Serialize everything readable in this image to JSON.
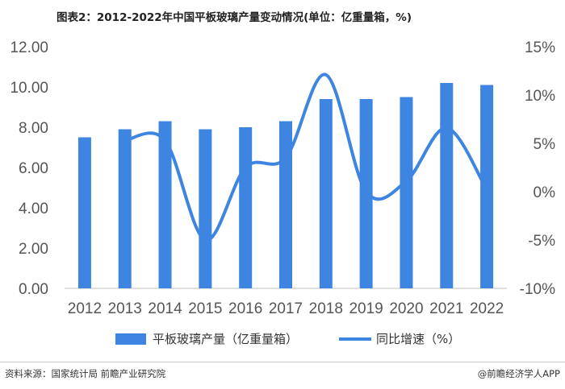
{
  "title": "图表2：2012-2022年中国平板玻璃产量变动情况(单位：亿重量箱，%)",
  "footer": {
    "source": "资料来源：国家统计局 前瞻产业研究院",
    "brand": "@前瞻经济学人APP"
  },
  "chart_data": {
    "type": "bar",
    "categories": [
      "2012",
      "2013",
      "2014",
      "2015",
      "2016",
      "2017",
      "2018",
      "2019",
      "2020",
      "2021",
      "2022"
    ],
    "y_left": {
      "min": 0,
      "max": 12,
      "ticks": [
        "0.00",
        "2.00",
        "4.00",
        "6.00",
        "8.00",
        "10.00",
        "12.00"
      ]
    },
    "y_right": {
      "min": -10,
      "max": 15,
      "ticks": [
        "-10%",
        "-5%",
        "0%",
        "5%",
        "10%",
        "15%"
      ]
    },
    "series": [
      {
        "name": "平板玻璃产量（亿重量箱）",
        "type": "bar",
        "axis": "left",
        "values": [
          7.5,
          7.9,
          8.3,
          7.9,
          8.0,
          8.3,
          9.4,
          9.4,
          9.5,
          10.2,
          10.1
        ]
      },
      {
        "name": "同比增速（%）",
        "type": "line",
        "axis": "right",
        "values": [
          null,
          5.3,
          5.3,
          -5.0,
          2.5,
          3.5,
          12.1,
          0.0,
          1.1,
          6.6,
          0.2
        ]
      }
    ],
    "colors": {
      "bar": "#3d85e0",
      "line": "#3d85e0"
    },
    "legend": "bottom",
    "grid": false
  }
}
